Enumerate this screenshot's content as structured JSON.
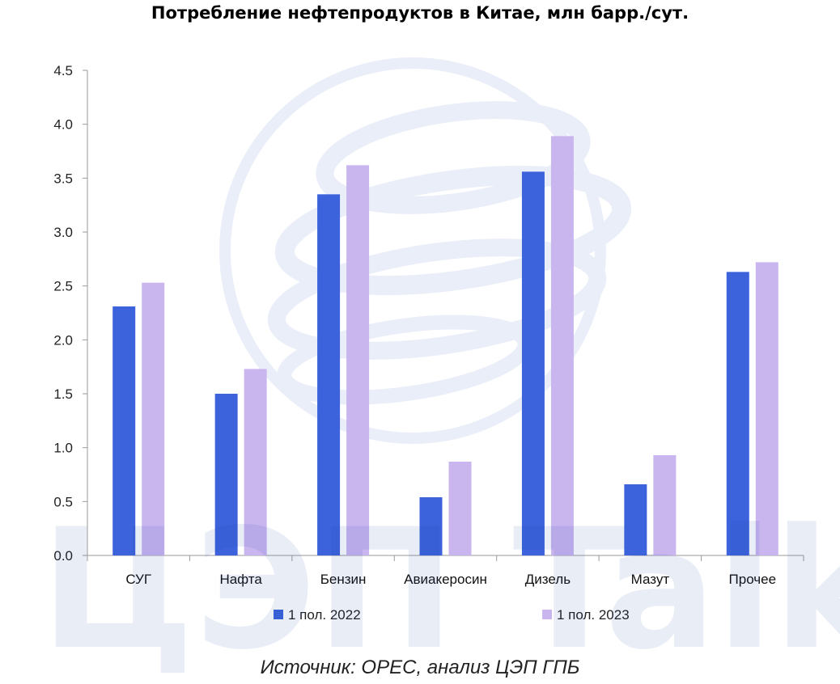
{
  "watermark": {
    "text": "ЦЭП Talks",
    "logo": "gazprom-globe-logo"
  },
  "chart_data": {
    "type": "bar",
    "title": "Потребление нефтепродуктов в Китае, млн барр./сут.",
    "categories": [
      "СУГ",
      "Нафта",
      "Бензин",
      "Авиакеросин",
      "Дизель",
      "Мазут",
      "Прочее"
    ],
    "series": [
      {
        "name": "1 пол. 2022",
        "color": "#3c63dc",
        "values": [
          2.31,
          1.5,
          3.35,
          0.54,
          3.56,
          0.66,
          2.63
        ]
      },
      {
        "name": "1 пол. 2023",
        "color": "#c9b6ef",
        "values": [
          2.53,
          1.73,
          3.62,
          0.87,
          3.89,
          0.93,
          2.72
        ]
      }
    ],
    "ylim": [
      0,
      4.5
    ],
    "yticks": [
      "0.0",
      "0.5",
      "1.0",
      "1.5",
      "2.0",
      "2.5",
      "3.0",
      "3.5",
      "4.0",
      "4.5"
    ],
    "xlabel": "",
    "ylabel": "",
    "grid": false,
    "legend_position": "bottom"
  },
  "source": "Источник: OPEC, анализ ЦЭП ГПБ"
}
